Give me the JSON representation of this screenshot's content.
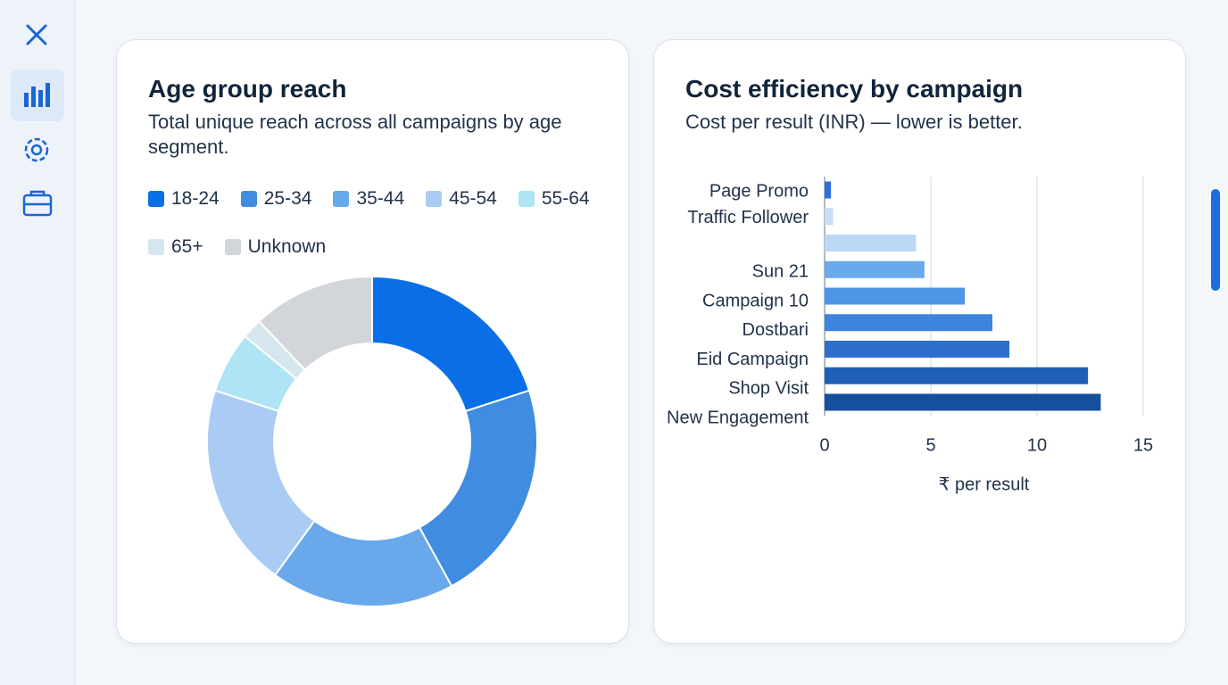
{
  "chart_data": [
    {
      "type": "pie",
      "title": "Age group reach",
      "subtitle": "Total unique reach across all campaigns by age segment.",
      "categories": [
        "18-24",
        "25-34",
        "35-44",
        "45-54",
        "55-64",
        "65+",
        "Unknown"
      ],
      "values": [
        20,
        22,
        18,
        20,
        6,
        2,
        12
      ],
      "colors": [
        "#0a6fe6",
        "#3f8ce0",
        "#6aa8ec",
        "#a9cbf4",
        "#aee4f3",
        "#d6e6ef",
        "#d2d5da"
      ],
      "donut": true
    },
    {
      "type": "barh",
      "title": "Cost efficiency by campaign",
      "subtitle": "Cost per result (INR) — lower is better.",
      "categories": [
        "Page Promo",
        "Traffic Follower",
        null,
        "Sun 21",
        "Campaign 10",
        "Dostbari",
        "Eid Campaign",
        "Shop Visit",
        "New Engagement"
      ],
      "values": [
        0.3,
        0.4,
        4.3,
        4.7,
        6.6,
        7.9,
        8.7,
        12.4,
        13.0
      ],
      "colors": [
        "#2f6fd6",
        "#c9ddf7",
        "#bcd8f6",
        "#6aa9ec",
        "#4d95e6",
        "#3d84dd",
        "#2c6fcc",
        "#1f5fb8",
        "#164f9e"
      ],
      "xlim": [
        0,
        15
      ],
      "xticks": [
        0,
        5,
        10,
        15
      ],
      "xlabel": "₹ per result",
      "grid": true
    }
  ]
}
